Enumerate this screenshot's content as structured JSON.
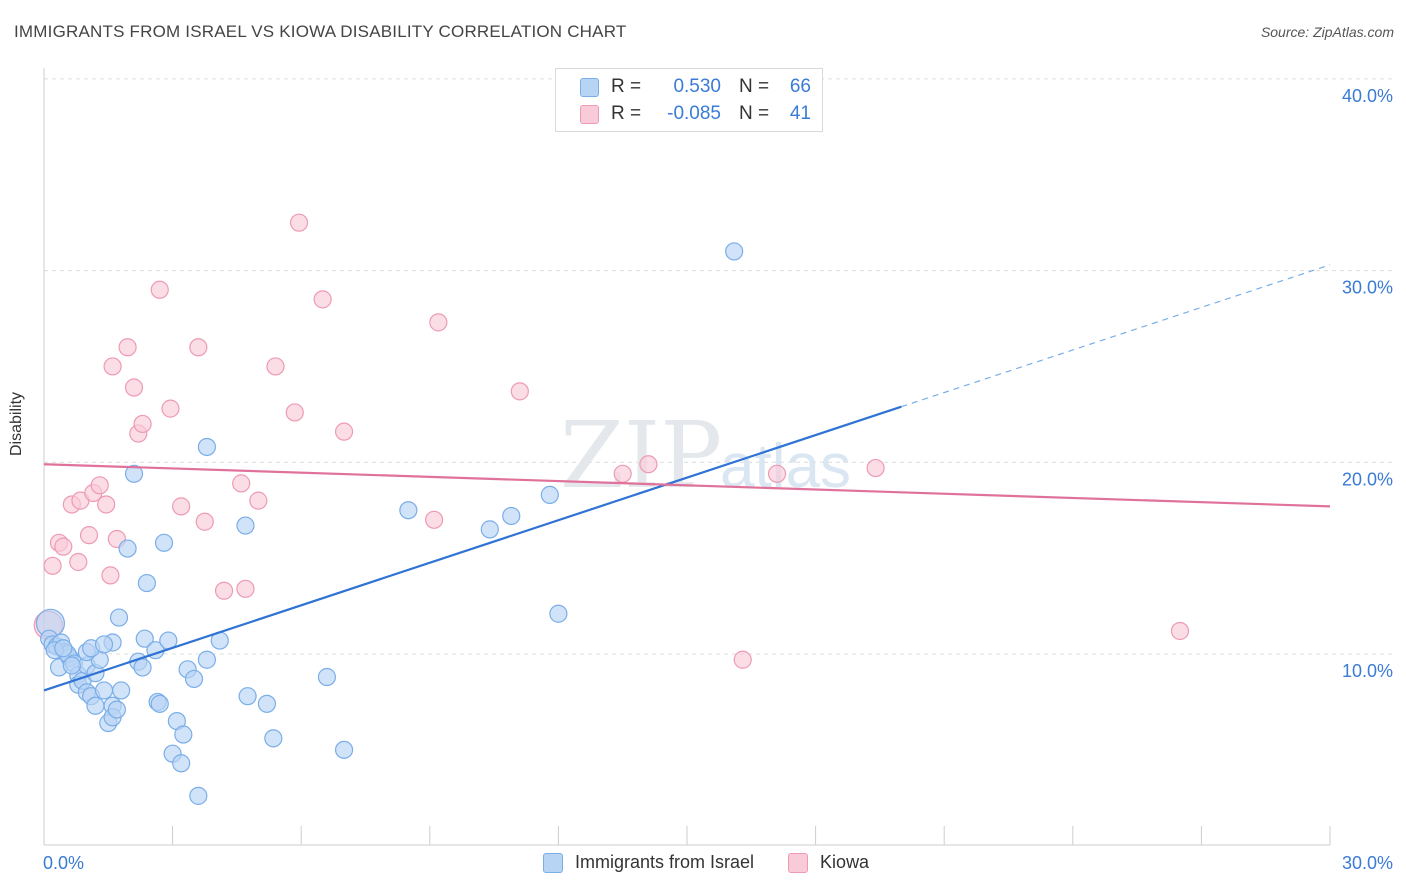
{
  "header": {
    "title": "IMMIGRANTS FROM ISRAEL VS KIOWA DISABILITY CORRELATION CHART",
    "source": "Source: ZipAtlas.com"
  },
  "legend": {
    "rows": [
      {
        "r_label": "R =",
        "r_value": "0.530",
        "n_label": "N =",
        "n_value": "66",
        "color": "#7aaee8",
        "fill": "#b8d4f4"
      },
      {
        "r_label": "R =",
        "r_value": "-0.085",
        "n_label": "N =",
        "n_value": "41",
        "color": "#ee9ab5",
        "fill": "#f9cbd8"
      }
    ]
  },
  "bottom_legend": [
    {
      "label": "Immigrants from Israel",
      "color": "#7aaee8",
      "fill": "#b8d4f4"
    },
    {
      "label": "Kiowa",
      "color": "#ee9ab5",
      "fill": "#f9cbd8"
    }
  ],
  "watermark": {
    "zip": "ZIP",
    "atlas": "atlas"
  },
  "chart_data": {
    "type": "scatter",
    "title": "IMMIGRANTS FROM ISRAEL VS KIOWA DISABILITY CORRELATION CHART",
    "xlabel": "",
    "ylabel": "Disability",
    "xlim": [
      0,
      30
    ],
    "ylim": [
      0,
      42
    ],
    "x_tick_labels": [
      "0.0%",
      "30.0%"
    ],
    "y_tick_labels": [
      "10.0%",
      "20.0%",
      "30.0%",
      "40.0%"
    ],
    "y_ticks": [
      10,
      20,
      30,
      40
    ],
    "grid": true,
    "legend_position": "top-center",
    "series": [
      {
        "name": "Immigrants from Israel",
        "color": "#3a7bd5",
        "marker_fill": "#b8d4f4",
        "marker_stroke": "#7aaee8",
        "R": 0.53,
        "N": 66,
        "trend": {
          "x0": 0,
          "y0": 8.1,
          "x1": 20.0,
          "y1": 22.9,
          "dashed_to_x": 30.0,
          "dashed_to_y": 30.3
        },
        "points": [
          [
            0.15,
            11.6
          ],
          [
            0.12,
            10.8
          ],
          [
            0.2,
            10.5
          ],
          [
            0.3,
            10.4
          ],
          [
            0.4,
            10.6
          ],
          [
            0.5,
            10.1
          ],
          [
            0.35,
            9.3
          ],
          [
            0.6,
            9.8
          ],
          [
            0.55,
            10.0
          ],
          [
            0.7,
            9.5
          ],
          [
            0.8,
            8.9
          ],
          [
            0.8,
            8.4
          ],
          [
            0.9,
            8.6
          ],
          [
            1.0,
            9.4
          ],
          [
            1.0,
            8.0
          ],
          [
            1.1,
            7.8
          ],
          [
            1.2,
            9.0
          ],
          [
            1.2,
            7.3
          ],
          [
            1.3,
            9.7
          ],
          [
            1.4,
            8.1
          ],
          [
            1.5,
            6.4
          ],
          [
            1.6,
            7.3
          ],
          [
            1.6,
            6.7
          ],
          [
            1.7,
            7.1
          ],
          [
            1.8,
            8.1
          ],
          [
            1.0,
            10.1
          ],
          [
            1.1,
            10.3
          ],
          [
            1.6,
            10.6
          ],
          [
            1.75,
            11.9
          ],
          [
            1.95,
            15.5
          ],
          [
            2.1,
            19.4
          ],
          [
            2.2,
            9.6
          ],
          [
            2.3,
            9.3
          ],
          [
            2.35,
            10.8
          ],
          [
            2.4,
            13.7
          ],
          [
            2.6,
            10.2
          ],
          [
            2.65,
            7.5
          ],
          [
            2.7,
            7.4
          ],
          [
            2.8,
            15.8
          ],
          [
            2.9,
            10.7
          ],
          [
            3.0,
            4.8
          ],
          [
            3.1,
            6.5
          ],
          [
            3.2,
            4.3
          ],
          [
            3.25,
            5.8
          ],
          [
            3.35,
            9.2
          ],
          [
            3.5,
            8.7
          ],
          [
            3.6,
            2.6
          ],
          [
            3.8,
            9.7
          ],
          [
            3.8,
            20.8
          ],
          [
            4.1,
            10.7
          ],
          [
            4.7,
            16.7
          ],
          [
            4.75,
            7.8
          ],
          [
            5.2,
            7.4
          ],
          [
            5.35,
            5.6
          ],
          [
            6.6,
            8.8
          ],
          [
            7.0,
            5.0
          ],
          [
            8.5,
            17.5
          ],
          [
            10.4,
            16.5
          ],
          [
            10.9,
            17.2
          ],
          [
            11.8,
            18.3
          ],
          [
            12.0,
            12.1
          ],
          [
            16.1,
            31.0
          ],
          [
            0.25,
            10.2
          ],
          [
            0.45,
            10.3
          ],
          [
            0.65,
            9.4
          ],
          [
            1.4,
            10.5
          ]
        ]
      },
      {
        "name": "Kiowa",
        "color": "#e0719a",
        "marker_fill": "#f9cbd8",
        "marker_stroke": "#ee9ab5",
        "R": -0.085,
        "N": 41,
        "trend": {
          "x0": 0,
          "y0": 19.9,
          "x1": 30.0,
          "y1": 17.7
        },
        "points": [
          [
            0.2,
            14.6
          ],
          [
            0.35,
            15.8
          ],
          [
            0.45,
            15.6
          ],
          [
            0.65,
            17.8
          ],
          [
            0.8,
            14.8
          ],
          [
            0.85,
            18.0
          ],
          [
            1.05,
            16.2
          ],
          [
            1.15,
            18.4
          ],
          [
            1.3,
            18.8
          ],
          [
            1.45,
            17.8
          ],
          [
            1.55,
            14.1
          ],
          [
            1.6,
            25.0
          ],
          [
            1.7,
            16.0
          ],
          [
            1.95,
            26.0
          ],
          [
            2.1,
            23.9
          ],
          [
            2.2,
            21.5
          ],
          [
            2.3,
            22.0
          ],
          [
            2.7,
            29.0
          ],
          [
            2.95,
            22.8
          ],
          [
            3.2,
            17.7
          ],
          [
            3.6,
            26.0
          ],
          [
            3.75,
            16.9
          ],
          [
            4.2,
            13.3
          ],
          [
            4.6,
            18.9
          ],
          [
            4.7,
            13.4
          ],
          [
            5.0,
            18.0
          ],
          [
            5.4,
            25.0
          ],
          [
            5.85,
            22.6
          ],
          [
            5.95,
            32.5
          ],
          [
            6.5,
            28.5
          ],
          [
            7.0,
            21.6
          ],
          [
            9.1,
            17.0
          ],
          [
            9.2,
            27.3
          ],
          [
            11.1,
            23.7
          ],
          [
            13.5,
            19.4
          ],
          [
            14.1,
            19.9
          ],
          [
            16.3,
            9.7
          ],
          [
            17.1,
            19.4
          ],
          [
            19.4,
            19.7
          ],
          [
            26.5,
            11.2
          ],
          [
            0.1,
            11.5
          ]
        ]
      }
    ]
  }
}
